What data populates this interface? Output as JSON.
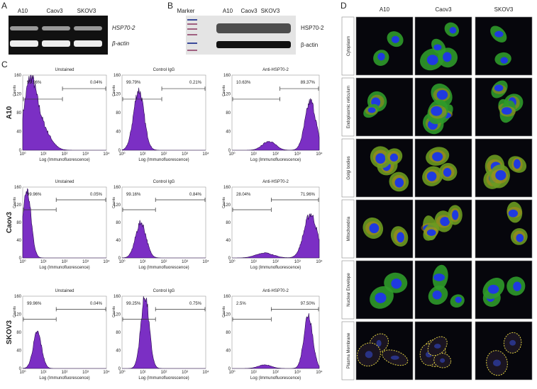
{
  "panel_labels": [
    "A",
    "B",
    "C",
    "D"
  ],
  "panel_a": {
    "lanes": [
      "A10",
      "Caov3",
      "SKOV3"
    ],
    "bands": [
      "HSP70-2",
      "β-actin"
    ]
  },
  "panel_b": {
    "marker": "Marker",
    "lanes": [
      "A10",
      "Caov3",
      "SKOV3"
    ],
    "bands": [
      "HSP70-2",
      "β-actin"
    ]
  },
  "panel_c": {
    "x_label": "Log (Immunofluorescence)",
    "y_label": "Counts",
    "x_ticks": [
      "10⁰",
      "10¹",
      "10²",
      "10³",
      "10⁴"
    ],
    "y_ticks": [
      "0",
      "40",
      "80",
      "120",
      "160"
    ],
    "rows": [
      {
        "name": "A10",
        "plots": [
          {
            "title": "Unstained",
            "left_gate": "99.96%",
            "right_gate": "0.04%"
          },
          {
            "title": "Control IgG",
            "left_gate": "99.79%",
            "right_gate": "0.21%"
          },
          {
            "title": "Anti-HSP70-2",
            "left_gate": "10.63%",
            "right_gate": "89.37%"
          }
        ]
      },
      {
        "name": "Caov3",
        "plots": [
          {
            "title": "Unstained",
            "left_gate": "99.96%",
            "right_gate": "0.05%"
          },
          {
            "title": "Control IgG",
            "left_gate": "99.16%",
            "right_gate": "0.84%"
          },
          {
            "title": "Anti-HSP70-2",
            "left_gate": "28.04%",
            "right_gate": "71.96%"
          }
        ]
      },
      {
        "name": "SKOV3",
        "plots": [
          {
            "title": "Unstained",
            "left_gate": "99.96%",
            "right_gate": "0.04%"
          },
          {
            "title": "Control IgG",
            "left_gate": "99.25%",
            "right_gate": "0.75%"
          },
          {
            "title": "Anti-HSP70-2",
            "left_gate": "2.5%",
            "right_gate": "97.50%"
          }
        ]
      }
    ]
  },
  "panel_d": {
    "columns": [
      "A10",
      "Caov3",
      "SKOV3"
    ],
    "rows": [
      "Cytoplasm",
      "Endoplasmic reticulum",
      "Golgi bodies",
      "Mitochondria",
      "Nuclear Envelope",
      "Plasma Membrane"
    ]
  }
}
